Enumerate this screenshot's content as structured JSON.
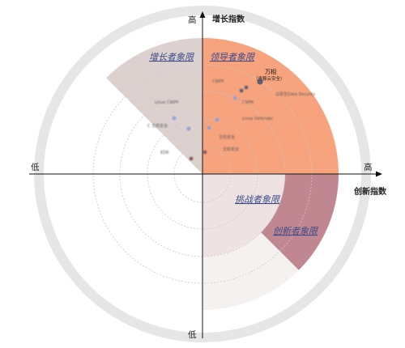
{
  "chart_data": {
    "type": "scatter",
    "title": "",
    "y_axis": {
      "label": "增长指数",
      "high": "高",
      "low": "低"
    },
    "x_axis": {
      "label": "创新指数",
      "high": "高",
      "low": "低"
    },
    "quadrants": {
      "leader": {
        "label": "领导者象限",
        "color": "#f7a47e"
      },
      "growth": {
        "label": "增长者象限",
        "color": "#ddd1cf"
      },
      "challenger": {
        "label": "挑战者象限",
        "color": "#eee3e2"
      },
      "innovator": {
        "label": "创新者象限",
        "color": "#c18790"
      }
    },
    "ring_color": "#e6e6e6",
    "grid_circles": "dashed",
    "points": [
      {
        "label": "万相",
        "sub": "（青藤云安全）",
        "color": "#5a5f78",
        "blurred": false
      },
      {
        "label": "CWPP",
        "sub": "",
        "color": "#5e6380",
        "blurred": true
      },
      {
        "label": "云原生Data Security",
        "sub": "",
        "color": "#5e6380",
        "blurred": true
      },
      {
        "label": "CSPM",
        "sub": "",
        "color": "#8f9fd8",
        "blurred": true
      },
      {
        "label": "Linux CWPP",
        "sub": "",
        "color": "#8f9fd8",
        "blurred": true
      },
      {
        "label": "C 主机安全",
        "sub": "",
        "color": "#8f9fd8",
        "blurred": true
      },
      {
        "label": "Linux Defender",
        "sub": "",
        "color": "#8f9fd8",
        "blurred": true
      },
      {
        "label": "主机安全",
        "sub": "",
        "color": "#8f9fd8",
        "blurred": true
      },
      {
        "label": "EDR",
        "sub": "",
        "color": "#8a5c63",
        "blurred": true
      },
      {
        "label": "主机安全",
        "sub": "",
        "color": "#8a5c63",
        "blurred": true
      }
    ]
  }
}
